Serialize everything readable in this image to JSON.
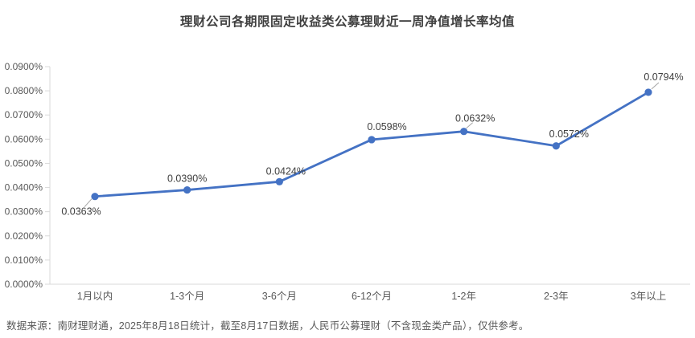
{
  "source_note": "数据来源：南财理财通，2025年8月18日统计，截至8月17日数据，人民币公募理财（不含现金类产品），仅供参考。",
  "colors": {
    "line": "#4472C4",
    "marker": "#4472C4",
    "axis": "#D9D9D9",
    "tick_label": "#595959",
    "category_label": "#595959",
    "data_label": "#404040",
    "title": "#3F3F3F",
    "source_note": "#595959",
    "leader": "#A6A6A6",
    "background": "#FFFFFF"
  },
  "chart_data": {
    "type": "line",
    "title": "理财公司各期限固定收益类公募理财近一周净值增长率均值",
    "categories": [
      "1月以内",
      "1-3个月",
      "3-6个月",
      "6-12个月",
      "1-2年",
      "2-3年",
      "3年以上"
    ],
    "values": [
      0.0363,
      0.039,
      0.0424,
      0.0598,
      0.0632,
      0.0572,
      0.0794
    ],
    "data_labels": [
      "0.0363%",
      "0.0390%",
      "0.0424%",
      "0.0598%",
      "0.0632%",
      "0.0572%",
      "0.0794%"
    ],
    "xlabel": "",
    "ylabel": "",
    "ylim": [
      0,
      0.09
    ],
    "y_tick_step": 0.01,
    "y_tick_labels": [
      "0.0000%",
      "0.0100%",
      "0.0200%",
      "0.0300%",
      "0.0400%",
      "0.0500%",
      "0.0600%",
      "0.0700%",
      "0.0800%",
      "0.0900%"
    ],
    "grid": false,
    "legend": "none"
  }
}
